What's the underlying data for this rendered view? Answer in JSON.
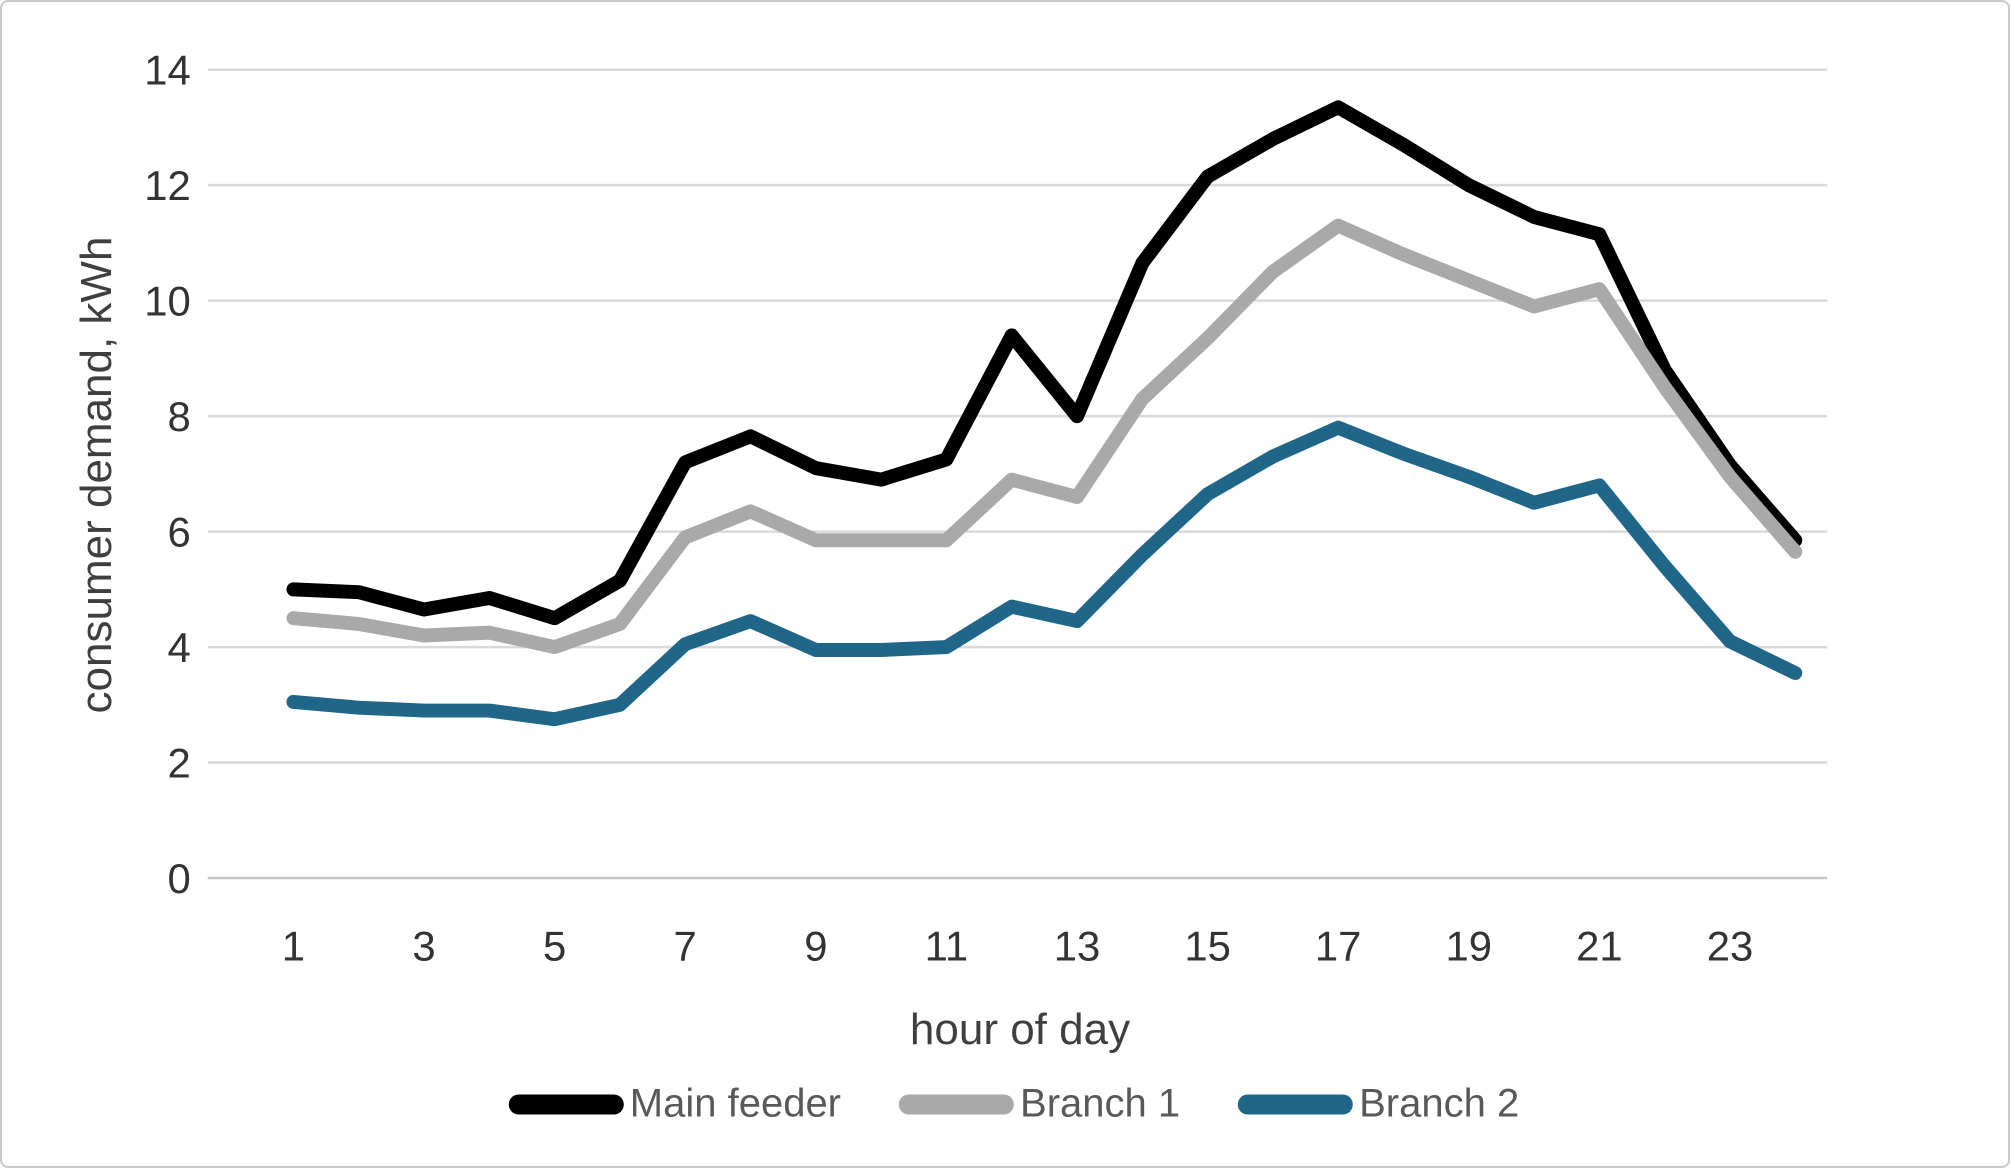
{
  "chart_data": {
    "type": "line",
    "title": "",
    "xlabel": "hour of day",
    "ylabel": "consumer demand, kWh",
    "x": [
      1,
      2,
      3,
      4,
      5,
      6,
      7,
      8,
      9,
      10,
      11,
      12,
      13,
      14,
      15,
      16,
      17,
      18,
      19,
      20,
      21,
      22,
      23,
      24
    ],
    "xticks": [
      1,
      3,
      5,
      7,
      9,
      11,
      13,
      15,
      17,
      19,
      21,
      23
    ],
    "yticks": [
      0,
      2,
      4,
      6,
      8,
      10,
      12,
      14
    ],
    "ylim": [
      0,
      14
    ],
    "grid": "horizontal-only",
    "legend_position": "bottom-center",
    "series": [
      {
        "name": "Main feeder",
        "color": "#000000",
        "values": [
          5.0,
          4.95,
          4.65,
          4.85,
          4.5,
          5.15,
          7.2,
          7.65,
          7.1,
          6.9,
          7.25,
          9.4,
          8.0,
          10.65,
          12.15,
          12.8,
          13.35,
          12.7,
          12.0,
          11.45,
          11.15,
          8.8,
          7.15,
          5.85
        ]
      },
      {
        "name": "Branch 1",
        "color": "#a9a9a9",
        "values": [
          4.5,
          4.4,
          4.2,
          4.25,
          4.0,
          4.4,
          5.9,
          6.35,
          5.85,
          5.85,
          5.85,
          6.9,
          6.6,
          8.3,
          9.35,
          10.5,
          11.3,
          10.8,
          10.35,
          9.9,
          10.2,
          8.5,
          6.95,
          5.65
        ]
      },
      {
        "name": "Branch 2",
        "color": "#206688",
        "values": [
          3.05,
          2.95,
          2.9,
          2.9,
          2.75,
          3.0,
          4.05,
          4.45,
          3.95,
          3.95,
          4.0,
          4.7,
          4.45,
          5.6,
          6.65,
          7.3,
          7.8,
          7.35,
          6.95,
          6.5,
          6.8,
          5.4,
          4.1,
          3.55
        ]
      }
    ],
    "style": {
      "gridline_color": "#d9d9d9",
      "baseline_color": "#c6c6c6",
      "tick_label_color": "#333333",
      "axis_title_color": "#3f3f3f",
      "legend_text_color": "#595959",
      "line_width": 14
    }
  }
}
